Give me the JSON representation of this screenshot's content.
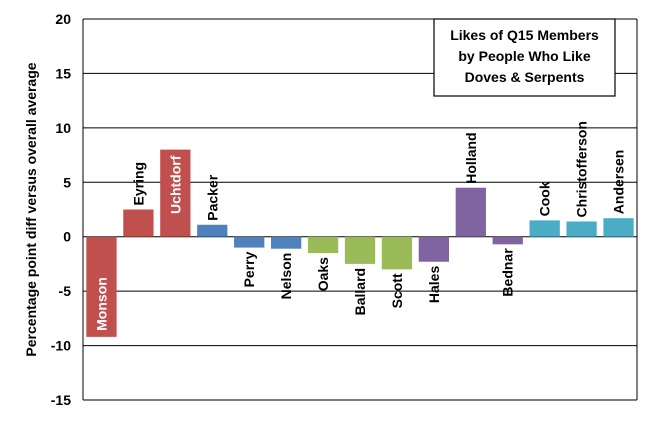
{
  "chart_data": {
    "type": "bar",
    "title_lines": [
      "Likes of Q15 Members",
      "by People Who Like",
      "Doves & Serpents"
    ],
    "ylabel": "Percentage point  diff  versus overall average",
    "xlabel": "",
    "ylim": [
      -15,
      20
    ],
    "yticks": [
      20,
      15,
      10,
      5,
      0,
      -5,
      -10,
      -15
    ],
    "grid": true,
    "categories": [
      "Monson",
      "Eyring",
      "Uchtdorf",
      "Packer",
      "Perry",
      "Nelson",
      "Oaks",
      "Ballard",
      "Scott",
      "Hales",
      "Holland",
      "Bednar",
      "Cook",
      "Christofferson",
      "Andersen"
    ],
    "values": [
      -9.2,
      2.5,
      8.0,
      1.1,
      -1.0,
      -1.1,
      -1.5,
      -2.5,
      -3.0,
      -2.3,
      4.5,
      -0.7,
      1.5,
      1.4,
      1.7
    ],
    "colors": [
      "#c0504d",
      "#c0504d",
      "#c0504d",
      "#4f81bd",
      "#4f81bd",
      "#4f81bd",
      "#9bbb59",
      "#9bbb59",
      "#9bbb59",
      "#8064a2",
      "#8064a2",
      "#8064a2",
      "#4bacc6",
      "#4bacc6",
      "#4bacc6"
    ],
    "label_inside": [
      "Monson",
      "Uchtdorf"
    ],
    "label_inside_color": "#ffffff",
    "label_color": "#000000"
  }
}
